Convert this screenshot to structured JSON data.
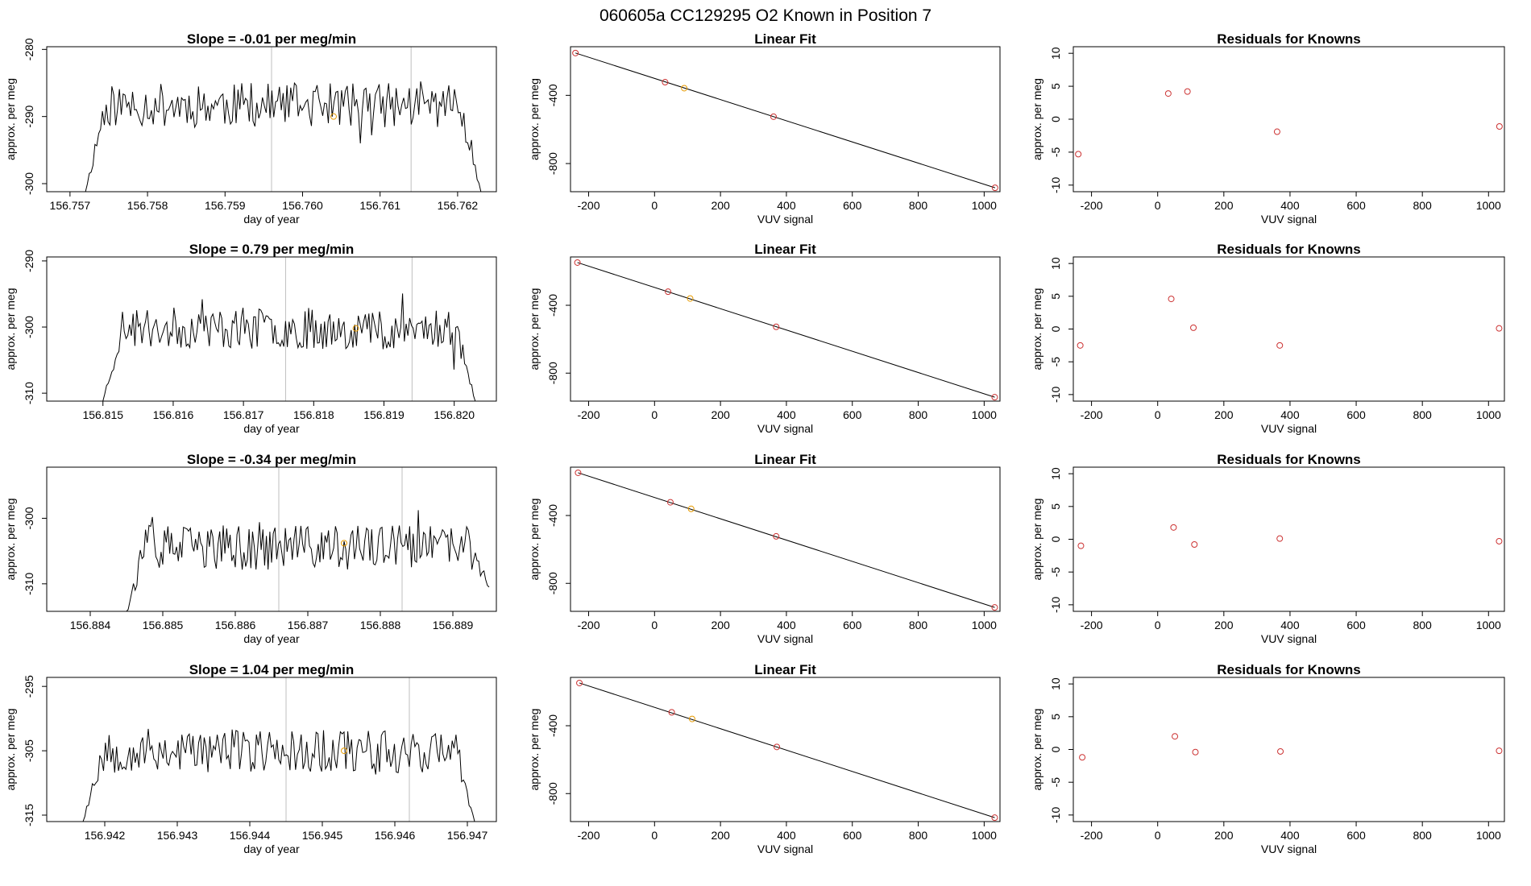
{
  "figure_title": "060605a      CC129295    O2 Known in Position  7",
  "colors": {
    "known_point": "#cc3333",
    "highlight_point": "#e69a00",
    "trace": "#000000",
    "marker_line": "#bfbfbf"
  },
  "chart_data": [
    {
      "type": "line",
      "row": 1,
      "title": "Slope =  -0.01  per meg/min",
      "xlabel": "day of year",
      "ylabel": "approx. per meg",
      "xlim": [
        156.7567,
        156.7625
      ],
      "ylim": [
        -301.2,
        -279.6
      ],
      "xticks": [
        156.757,
        156.758,
        156.759,
        156.76,
        156.761,
        156.762
      ],
      "xtick_labels": [
        "156.757",
        "156.758",
        "156.759",
        "156.760",
        "156.761",
        "156.762"
      ],
      "yticks": [
        -280,
        -290,
        -300
      ],
      "ytick_labels": [
        "-280",
        "-290",
        "-300"
      ],
      "vlines": [
        156.7596,
        156.7614
      ],
      "trace": {
        "x_start": 156.7572,
        "x_end": 156.7623,
        "start_value": -301.2,
        "end_value": -301.2,
        "base": -288.3,
        "amplitude": 2.2,
        "seed": 11
      },
      "highlight": {
        "x": 156.7604,
        "y": -290.0
      }
    },
    {
      "type": "scatter",
      "row": 1,
      "title": "Linear Fit",
      "xlabel": "VUV signal",
      "ylabel": "approx. per meg",
      "xlim": [
        -255,
        1048
      ],
      "ylim": [
        -965,
        -115
      ],
      "xticks": [
        -200,
        0,
        200,
        400,
        600,
        800,
        1000
      ],
      "xtick_labels": [
        "-200",
        "0",
        "200",
        "400",
        "600",
        "800",
        "1000"
      ],
      "yticks": [
        -400,
        -800
      ],
      "ytick_labels": [
        "-400",
        "-800"
      ],
      "points": [
        {
          "x": -240,
          "y": -152
        },
        {
          "x": 32,
          "y": -323
        },
        {
          "x": 90,
          "y": -358,
          "highlight": true
        },
        {
          "x": 361,
          "y": -525
        },
        {
          "x": 1033,
          "y": -942
        }
      ],
      "fit": {
        "x1": -240,
        "y1": -152,
        "x2": 1033,
        "y2": -942
      }
    },
    {
      "type": "scatter",
      "row": 1,
      "title": "Residuals for Knowns",
      "xlabel": "VUV signal",
      "ylabel": "approx. per meg",
      "xlim": [
        -255,
        1048
      ],
      "ylim": [
        -11,
        11
      ],
      "xticks": [
        -200,
        0,
        200,
        400,
        600,
        800,
        1000
      ],
      "xtick_labels": [
        "-200",
        "0",
        "200",
        "400",
        "600",
        "800",
        "1000"
      ],
      "yticks": [
        10,
        5,
        0,
        -5,
        -10
      ],
      "ytick_labels": [
        "10",
        "5",
        "0",
        "-5",
        "-10"
      ],
      "points": [
        {
          "x": -240,
          "y": -5.3
        },
        {
          "x": 32,
          "y": 3.9
        },
        {
          "x": 90,
          "y": 4.2
        },
        {
          "x": 361,
          "y": -1.9
        },
        {
          "x": 1033,
          "y": -1.1
        }
      ]
    },
    {
      "type": "line",
      "row": 2,
      "title": "Slope =  0.79  per meg/min",
      "xlabel": "day of year",
      "ylabel": "approx. per meg",
      "xlim": [
        156.8142,
        156.8206
      ],
      "ylim": [
        -311.2,
        -289.4
      ],
      "xticks": [
        156.815,
        156.816,
        156.817,
        156.818,
        156.819,
        156.82
      ],
      "xtick_labels": [
        "156.815",
        "156.816",
        "156.817",
        "156.818",
        "156.819",
        "156.820"
      ],
      "yticks": [
        -290,
        -300,
        -310
      ],
      "ytick_labels": [
        "-290",
        "-300",
        "-310"
      ],
      "vlines": [
        156.8176,
        156.8194
      ],
      "trace": {
        "x_start": 156.815,
        "x_end": 156.8203,
        "start_value": -311.2,
        "end_value": -311.2,
        "base": -300.2,
        "amplitude": 2.1,
        "seed": 23
      },
      "highlight": {
        "x": 156.8186,
        "y": -300.2
      }
    },
    {
      "type": "scatter",
      "row": 2,
      "title": "Linear Fit",
      "xlabel": "VUV signal",
      "ylabel": "approx. per meg",
      "xlim": [
        -255,
        1048
      ],
      "ylim": [
        -965,
        -115
      ],
      "xticks": [
        -200,
        0,
        200,
        400,
        600,
        800,
        1000
      ],
      "xtick_labels": [
        "-200",
        "0",
        "200",
        "400",
        "600",
        "800",
        "1000"
      ],
      "yticks": [
        -400,
        -800
      ],
      "ytick_labels": [
        "-400",
        "-800"
      ],
      "points": [
        {
          "x": -234,
          "y": -148
        },
        {
          "x": 41,
          "y": -320
        },
        {
          "x": 108,
          "y": -360,
          "highlight": true
        },
        {
          "x": 369,
          "y": -527
        },
        {
          "x": 1032,
          "y": -942
        }
      ],
      "fit": {
        "x1": -234,
        "y1": -148,
        "x2": 1032,
        "y2": -942
      }
    },
    {
      "type": "scatter",
      "row": 2,
      "title": "Residuals for Knowns",
      "xlabel": "VUV signal",
      "ylabel": "approx. per meg",
      "xlim": [
        -255,
        1048
      ],
      "ylim": [
        -11,
        11
      ],
      "xticks": [
        -200,
        0,
        200,
        400,
        600,
        800,
        1000
      ],
      "xtick_labels": [
        "-200",
        "0",
        "200",
        "400",
        "600",
        "800",
        "1000"
      ],
      "yticks": [
        10,
        5,
        0,
        -5,
        -10
      ],
      "ytick_labels": [
        "10",
        "5",
        "0",
        "-5",
        "-10"
      ],
      "points": [
        {
          "x": -234,
          "y": -2.5
        },
        {
          "x": 41,
          "y": 4.6
        },
        {
          "x": 108,
          "y": 0.2
        },
        {
          "x": 369,
          "y": -2.5
        },
        {
          "x": 1032,
          "y": 0.1
        }
      ]
    },
    {
      "type": "line",
      "row": 3,
      "title": "Slope =  -0.34  per meg/min",
      "xlabel": "day of year",
      "ylabel": "approx. per meg",
      "xlim": [
        156.8834,
        156.8896
      ],
      "ylim": [
        -314.2,
        -292.2
      ],
      "xticks": [
        156.884,
        156.885,
        156.886,
        156.887,
        156.888,
        156.889
      ],
      "xtick_labels": [
        "156.884",
        "156.885",
        "156.886",
        "156.887",
        "156.888",
        "156.889"
      ],
      "yticks": [
        -300,
        -310
      ],
      "ytick_labels": [
        "-300",
        "-310"
      ],
      "vlines": [
        156.8866,
        156.8883
      ],
      "trace": {
        "x_start": 156.8845,
        "x_end": 156.8895,
        "start_value": -314.2,
        "end_value": -310.5,
        "base": -304.5,
        "amplitude": 2.3,
        "seed": 37
      },
      "highlight": {
        "x": 156.8875,
        "y": -303.8
      }
    },
    {
      "type": "scatter",
      "row": 3,
      "title": "Linear Fit",
      "xlabel": "VUV signal",
      "ylabel": "approx. per meg",
      "xlim": [
        -255,
        1048
      ],
      "ylim": [
        -965,
        -115
      ],
      "xticks": [
        -200,
        0,
        200,
        400,
        600,
        800,
        1000
      ],
      "xtick_labels": [
        "-200",
        "0",
        "200",
        "400",
        "600",
        "800",
        "1000"
      ],
      "yticks": [
        -400,
        -800
      ],
      "ytick_labels": [
        "-400",
        "-800"
      ],
      "points": [
        {
          "x": -232,
          "y": -148
        },
        {
          "x": 48,
          "y": -322
        },
        {
          "x": 111,
          "y": -361,
          "highlight": true
        },
        {
          "x": 369,
          "y": -523
        },
        {
          "x": 1032,
          "y": -942
        }
      ],
      "fit": {
        "x1": -232,
        "y1": -148,
        "x2": 1032,
        "y2": -942
      }
    },
    {
      "type": "scatter",
      "row": 3,
      "title": "Residuals for Knowns",
      "xlabel": "VUV signal",
      "ylabel": "approx. per meg",
      "xlim": [
        -255,
        1048
      ],
      "ylim": [
        -11,
        11
      ],
      "xticks": [
        -200,
        0,
        200,
        400,
        600,
        800,
        1000
      ],
      "xtick_labels": [
        "-200",
        "0",
        "200",
        "400",
        "600",
        "800",
        "1000"
      ],
      "yticks": [
        10,
        5,
        0,
        -5,
        -10
      ],
      "ytick_labels": [
        "10",
        "5",
        "0",
        "-5",
        "-10"
      ],
      "points": [
        {
          "x": -232,
          "y": -1.0
        },
        {
          "x": 48,
          "y": 1.8
        },
        {
          "x": 111,
          "y": -0.8
        },
        {
          "x": 369,
          "y": 0.1
        },
        {
          "x": 1032,
          "y": -0.3
        }
      ]
    },
    {
      "type": "line",
      "row": 4,
      "title": "Slope =  1.04  per meg/min",
      "xlabel": "day of year",
      "ylabel": "approx. per meg",
      "xlim": [
        156.9412,
        156.9474
      ],
      "ylim": [
        -316.0,
        -293.6
      ],
      "xticks": [
        156.942,
        156.943,
        156.944,
        156.945,
        156.946,
        156.947
      ],
      "xtick_labels": [
        "156.942",
        "156.943",
        "156.944",
        "156.945",
        "156.946",
        "156.947"
      ],
      "yticks": [
        -295,
        -305,
        -315
      ],
      "ytick_labels": [
        "-295",
        "-305",
        "-315"
      ],
      "vlines": [
        156.9445,
        156.9462
      ],
      "trace": {
        "x_start": 156.9417,
        "x_end": 156.9471,
        "start_value": -316.0,
        "end_value": -316.0,
        "base": -305.0,
        "amplitude": 2.3,
        "seed": 53
      },
      "highlight": {
        "x": 156.9453,
        "y": -305.0
      }
    },
    {
      "type": "scatter",
      "row": 4,
      "title": "Linear Fit",
      "xlabel": "VUV signal",
      "ylabel": "approx. per meg",
      "xlim": [
        -255,
        1048
      ],
      "ylim": [
        -965,
        -115
      ],
      "xticks": [
        -200,
        0,
        200,
        400,
        600,
        800,
        1000
      ],
      "xtick_labels": [
        "-200",
        "0",
        "200",
        "400",
        "600",
        "800",
        "1000"
      ],
      "yticks": [
        -400,
        -800
      ],
      "ytick_labels": [
        "-400",
        "-800"
      ],
      "points": [
        {
          "x": -228,
          "y": -148
        },
        {
          "x": 52,
          "y": -321
        },
        {
          "x": 114,
          "y": -360,
          "highlight": true
        },
        {
          "x": 371,
          "y": -525
        },
        {
          "x": 1032,
          "y": -942
        }
      ],
      "fit": {
        "x1": -228,
        "y1": -148,
        "x2": 1032,
        "y2": -942
      }
    },
    {
      "type": "scatter",
      "row": 4,
      "title": "Residuals for Knowns",
      "xlabel": "VUV signal",
      "ylabel": "approx. per meg",
      "xlim": [
        -255,
        1048
      ],
      "ylim": [
        -11,
        11
      ],
      "xticks": [
        -200,
        0,
        200,
        400,
        600,
        800,
        1000
      ],
      "xtick_labels": [
        "-200",
        "0",
        "200",
        "400",
        "600",
        "800",
        "1000"
      ],
      "yticks": [
        10,
        5,
        0,
        -5,
        -10
      ],
      "ytick_labels": [
        "10",
        "5",
        "0",
        "-5",
        "-10"
      ],
      "points": [
        {
          "x": -228,
          "y": -1.2
        },
        {
          "x": 52,
          "y": 2.0
        },
        {
          "x": 114,
          "y": -0.4
        },
        {
          "x": 371,
          "y": -0.3
        },
        {
          "x": 1032,
          "y": -0.2
        }
      ]
    }
  ]
}
